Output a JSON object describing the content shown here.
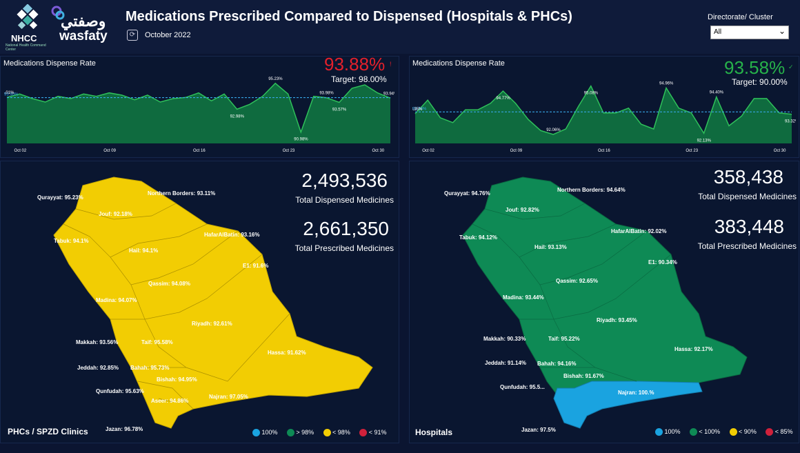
{
  "header": {
    "brand_nhcc": "NHCC",
    "brand_nhcc_sub": "National Health Command Center",
    "brand_wasfaty_ar": "وصفتي",
    "brand_wasfaty_en": "wasfaty",
    "title": "Medications Prescribed Compared to Dispensed (Hospitals & PHCs)",
    "period": "October 2022",
    "filter_label": "Directorate/ Cluster",
    "filter_value": "All"
  },
  "colors": {
    "green": "#0e8a55",
    "yellow": "#f2cd03",
    "blue": "#1aa3e0",
    "red": "#d0213b",
    "kpi_red": "#e4202b",
    "kpi_green": "#27b24a"
  },
  "left_trend": {
    "title": "Medications Dispense Rate",
    "kpi": "93.88%",
    "kpi_icon": "!",
    "target": "Target: 98.00%",
    "avg_label": "93.90%",
    "labels": [
      "94.01%",
      "92.98%",
      "95.23%",
      "90.98%",
      "93.98%",
      "93.57%",
      "93.94%"
    ],
    "x_ticks": [
      "Oct 02",
      "Oct 09",
      "Oct 16",
      "Oct 23",
      "Oct 30"
    ]
  },
  "right_trend": {
    "title": "Medications Dispense Rate",
    "kpi": "93.58%",
    "kpi_icon": "✓",
    "target": "Target: 90.00%",
    "avg_label": "93.58%",
    "labels": [
      "93.35%",
      "94.77%",
      "92.06%",
      "95.08%",
      "94.96%",
      "92.13%",
      "94.40%",
      "93.32%"
    ],
    "x_ticks": [
      "Oct 02",
      "Oct 09",
      "Oct 16",
      "Oct 23",
      "Oct 30"
    ]
  },
  "chart_data": [
    {
      "type": "area",
      "title": "Medications Dispense Rate",
      "x": [
        "Oct 01",
        "Oct 02",
        "Oct 03",
        "Oct 04",
        "Oct 05",
        "Oct 06",
        "Oct 07",
        "Oct 08",
        "Oct 09",
        "Oct 10",
        "Oct 11",
        "Oct 12",
        "Oct 13",
        "Oct 14",
        "Oct 15",
        "Oct 16",
        "Oct 17",
        "Oct 18",
        "Oct 19",
        "Oct 20",
        "Oct 21",
        "Oct 22",
        "Oct 23",
        "Oct 24",
        "Oct 25",
        "Oct 26",
        "Oct 27",
        "Oct 28",
        "Oct 29",
        "Oct 30",
        "Oct 31"
      ],
      "values": [
        94.01,
        94.3,
        93.9,
        93.6,
        94.1,
        93.9,
        94.3,
        94.1,
        94.4,
        94.2,
        93.8,
        94.2,
        93.6,
        93.9,
        94.0,
        94.4,
        93.7,
        94.3,
        92.98,
        93.4,
        94.1,
        95.23,
        94.3,
        90.98,
        94.1,
        93.98,
        93.57,
        94.8,
        95.1,
        94.4,
        93.94
      ],
      "target": 98.0
    },
    {
      "type": "area",
      "title": "Medications Dispense Rate",
      "x": [
        "Oct 01",
        "Oct 02",
        "Oct 03",
        "Oct 04",
        "Oct 05",
        "Oct 06",
        "Oct 07",
        "Oct 08",
        "Oct 09",
        "Oct 10",
        "Oct 11",
        "Oct 12",
        "Oct 13",
        "Oct 14",
        "Oct 15",
        "Oct 16",
        "Oct 17",
        "Oct 18",
        "Oct 19",
        "Oct 20",
        "Oct 21",
        "Oct 22",
        "Oct 23",
        "Oct 24",
        "Oct 25",
        "Oct 26",
        "Oct 27",
        "Oct 28",
        "Oct 29",
        "Oct 30",
        "Oct 31"
      ],
      "values": [
        93.35,
        94.2,
        93.1,
        92.8,
        93.6,
        93.6,
        94.0,
        94.77,
        94.0,
        93.0,
        92.3,
        92.06,
        92.4,
        93.8,
        95.08,
        93.4,
        93.4,
        93.7,
        92.7,
        92.4,
        94.96,
        93.7,
        93.4,
        92.13,
        94.4,
        92.6,
        93.2,
        94.3,
        94.3,
        93.4,
        93.32
      ],
      "target": 90.0
    }
  ],
  "left_map": {
    "total_dispensed": "2,493,536",
    "total_dispensed_label": "Total Dispensed Medicines",
    "total_prescribed": "2,661,350",
    "total_prescribed_label": "Total Prescribed Medicines",
    "footer_title": "PHCs / SPZD Clinics",
    "regions": [
      "Qurayyat: 95.23%",
      "Northern Borders: 93.11%",
      "Jouf: 92.18%",
      "Tabuk: 94.1%",
      "Hail: 94.1%",
      "HafarAlBatin: 93.16%",
      "E1: 91.6%",
      "Qassim: 94.08%",
      "Madina: 94.07%",
      "Riyadh: 92.61%",
      "Makkah: 93.56%",
      "Taif: 95.58%",
      "Hassa: 91.62%",
      "Jeddah: 92.85%",
      "Bahah: 95.73%",
      "Bishah: 94.95%",
      "Qunfudah: 95.63%",
      "Aseer: 94.86%",
      "Najran: 97.05%",
      "Jazan: 96.78%"
    ],
    "legend": [
      "100%",
      "> 98%",
      "< 98%",
      "< 91%"
    ]
  },
  "right_map": {
    "total_dispensed": "358,438",
    "total_dispensed_label": "Total Dispensed Medicines",
    "total_prescribed": "383,448",
    "total_prescribed_label": "Total Prescribed Medicines",
    "footer_title": "Hospitals",
    "regions": [
      "Qurayyat: 94.76%",
      "Northern Borders: 94.64%",
      "Jouf: 92.82%",
      "Tabuk: 94.12%",
      "Hail: 93.13%",
      "HafarAlBatin: 92.02%",
      "E1: 90.34%",
      "Qassim: 92.65%",
      "Madina: 93.44%",
      "Riyadh: 93.45%",
      "Makkah: 90.33%",
      "Taif: 95.22%",
      "Hassa: 92.17%",
      "Jeddah: 91.14%",
      "Bahah: 94.16%",
      "Bishah: 91.67%",
      "Qunfudah: 95.5...",
      "Najran: 100.%",
      "Jazan: 97.5%"
    ],
    "legend": [
      "100%",
      "< 100%",
      "< 90%",
      "< 85%"
    ]
  }
}
